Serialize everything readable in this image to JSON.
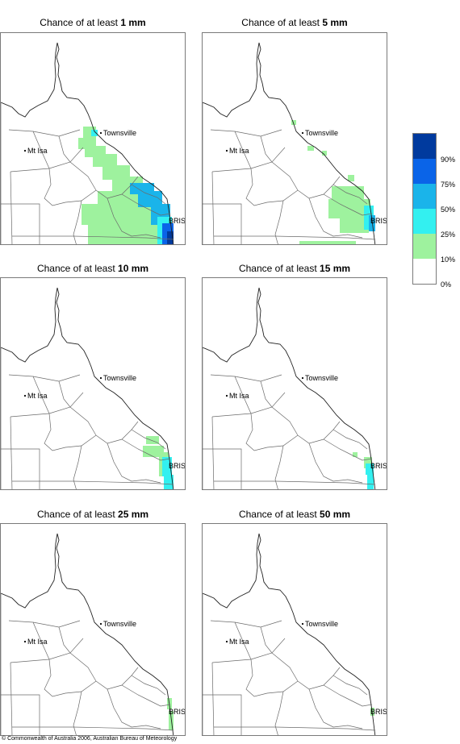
{
  "panels": [
    {
      "title_prefix": "Chance of at least ",
      "threshold": "1 mm"
    },
    {
      "title_prefix": "Chance of at least ",
      "threshold": "5 mm"
    },
    {
      "title_prefix": "Chance of at least ",
      "threshold": "10 mm"
    },
    {
      "title_prefix": "Chance of at least ",
      "threshold": "15 mm"
    },
    {
      "title_prefix": "Chance of at least ",
      "threshold": "25 mm"
    },
    {
      "title_prefix": "Chance of at least ",
      "threshold": "50 mm"
    }
  ],
  "places": {
    "townsville": "Townsville",
    "mt_isa": "Mt Isa",
    "brisbane": "BRIS"
  },
  "legend": {
    "labels": [
      "90%",
      "75%",
      "50%",
      "25%",
      "10%",
      "0%"
    ],
    "colors": {
      "above_90": "#003a9e",
      "75_90": "#0a64e8",
      "50_75": "#1ab4ea",
      "25_50": "#33f0f0",
      "10_25": "#9ef29e",
      "0_10": "#ffffff"
    }
  },
  "footer": "© Commonwealth of Australia 2006, Australian Bureau of Meteorology"
}
